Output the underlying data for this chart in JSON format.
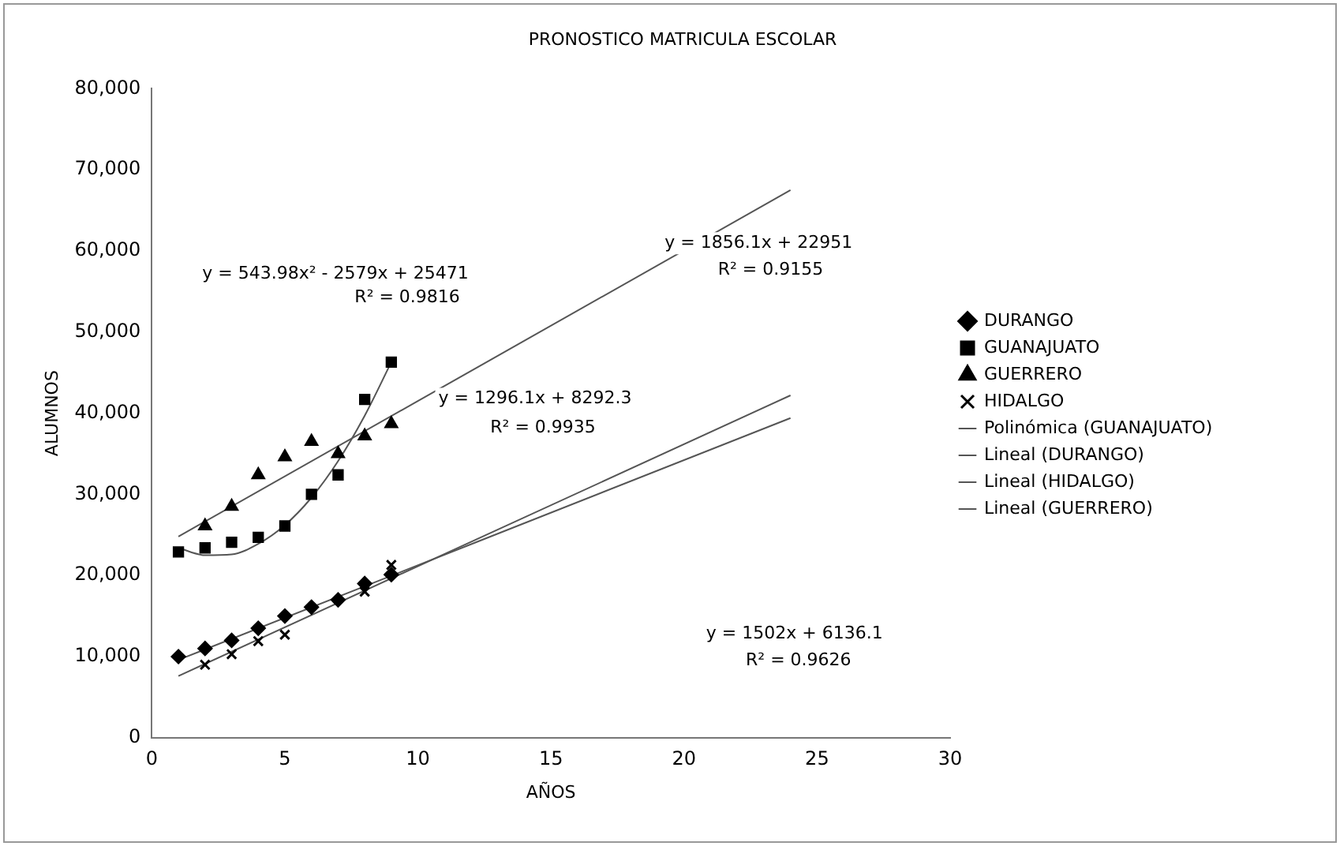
{
  "chart_data": {
    "type": "scatter",
    "title": "PRONOSTICO MATRICULA ESCOLAR",
    "xlabel": "AÑOS",
    "ylabel": "ALUMNOS",
    "x": [
      1,
      2,
      3,
      4,
      5,
      6,
      7,
      8,
      9
    ],
    "xlim": [
      0,
      30
    ],
    "xticks": [
      0,
      5,
      10,
      15,
      20,
      25,
      30
    ],
    "ylim": [
      0,
      80000
    ],
    "yticks": [
      0,
      {
        "value": 10000,
        "label": "10,000"
      },
      {
        "value": 20000,
        "label": "20,000"
      },
      {
        "value": 30000,
        "label": "30,000"
      },
      {
        "value": 40000,
        "label": "40,000"
      },
      {
        "value": 50000,
        "label": "50,000"
      },
      {
        "value": 60000,
        "label": "60,000"
      },
      {
        "value": 70000,
        "label": "70,000"
      },
      {
        "value": 80000,
        "label": "80,000"
      }
    ],
    "grid": false,
    "legend": "right",
    "series": [
      {
        "name": "DURANGO",
        "color": "#000000",
        "marker": "diamond",
        "values": [
          10000,
          11000,
          12000,
          13500,
          15000,
          16100,
          17000,
          19000,
          20100
        ]
      },
      {
        "name": "GUANAJUATO",
        "color": "#000000",
        "marker": "square",
        "values": [
          22900,
          23400,
          24100,
          24700,
          26100,
          30000,
          32400,
          41700,
          46300
        ]
      },
      {
        "name": "GUERRERO",
        "color": "#000000",
        "marker": "triangle",
        "values": [
          null,
          26100,
          28500,
          32400,
          34600,
          36500,
          35000,
          37200,
          38700
        ]
      },
      {
        "name": "HIDALGO",
        "color": "#000000",
        "marker": "cross",
        "values": [
          null,
          9000,
          10300,
          11900,
          12700,
          null,
          null,
          18000,
          21300
        ]
      },
      {
        "name": "Polinómica (GUANAJUATO)",
        "type": "line",
        "marker": "none",
        "color": "#555555",
        "x": [
          1,
          2,
          3,
          4,
          5,
          6,
          7,
          8,
          9
        ],
        "values": [
          23400,
          22500,
          22600,
          23900,
          26200,
          29600,
          34100,
          39700,
          46300
        ]
      },
      {
        "name": "Lineal (DURANGO)",
        "type": "line",
        "marker": "none",
        "color": "#555555",
        "x": [
          1,
          24
        ],
        "values": [
          9600,
          39400
        ]
      },
      {
        "name": "Lineal (HIDALGO)",
        "type": "line",
        "marker": "none",
        "color": "#555555",
        "x": [
          1,
          24
        ],
        "values": [
          7600,
          42200
        ]
      },
      {
        "name": "Lineal (GUERRERO)",
        "type": "line",
        "marker": "none",
        "color": "#555555",
        "x": [
          1,
          24
        ],
        "values": [
          24800,
          67500
        ]
      }
    ],
    "annotations": [
      "y = 543.98x² - 2579x + 25471",
      "R² = 0.9816",
      "y = 1856.1x + 22951",
      "R² = 0.9155",
      "y = 1296.1x + 8292.3",
      "R² = 0.9935",
      "y = 1502x + 6136.1",
      "R² = 0.9626"
    ]
  }
}
